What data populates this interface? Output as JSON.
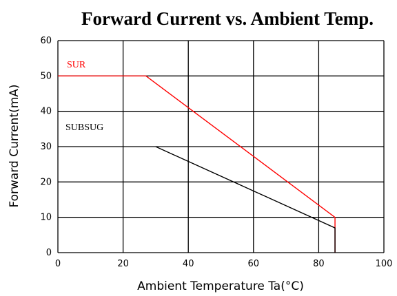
{
  "chart_data": {
    "type": "line",
    "title": "Forward Current vs. Ambient Temp.",
    "xlabel": "Ambient Temperature Ta(°C)",
    "ylabel": "Forward Current(mA)",
    "xlim": [
      0,
      100
    ],
    "ylim": [
      0,
      60
    ],
    "x_ticks": [
      0,
      20,
      40,
      60,
      80,
      100
    ],
    "y_ticks": [
      0,
      10,
      20,
      30,
      40,
      50,
      60
    ],
    "grid": true,
    "series": [
      {
        "name": "SUR",
        "color": "#ff0000",
        "points": [
          [
            0,
            50
          ],
          [
            27,
            50
          ],
          [
            85,
            10
          ],
          [
            85,
            0
          ]
        ]
      },
      {
        "name": "SUBSUG",
        "color": "#000000",
        "points": [
          [
            30,
            30
          ],
          [
            85,
            7
          ],
          [
            85,
            0
          ]
        ]
      }
    ]
  }
}
